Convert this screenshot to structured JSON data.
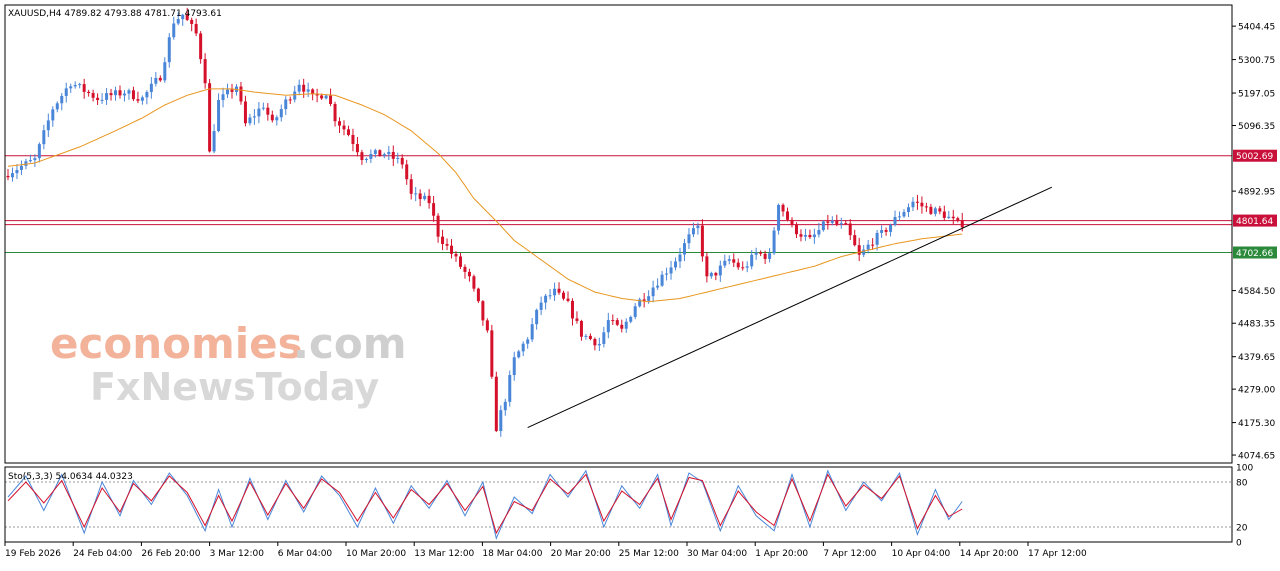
{
  "colors": {
    "bull": "#4a86d8",
    "bear": "#d4102a",
    "ma": "#e8961e",
    "stoch_main": "#4a86d8",
    "stoch_signal": "#d4102a",
    "res_line": "#c8103a",
    "sup_line": "#2a8a3a",
    "trend": "#000000",
    "frame": "#000000",
    "grid_dotted": "#999999"
  },
  "watermark": {
    "line1_part1": "economies",
    "line1_part2": ".com",
    "line2": "FxNewsToday"
  },
  "chart_data": [
    {
      "type": "candlestick",
      "symbol_info": "XAUUSD,H4  4789.82 4793.88 4781.71 4793.61",
      "y_ticks": [
        "5404.45",
        "5300.75",
        "5197.05",
        "5096.35",
        "4892.95",
        "4584.50",
        "4483.35",
        "4379.65",
        "4279.00",
        "4175.30",
        "4074.65"
      ],
      "price_labels": [
        {
          "value": "5002.69",
          "kind": "resistance"
        },
        {
          "value": "4801.64",
          "kind": "resistance"
        },
        {
          "value": "4702.66",
          "kind": "support"
        }
      ],
      "x_ticks": [
        "19 Feb 2026",
        "24 Feb 04:00",
        "26 Feb 20:00",
        "3 Mar 12:00",
        "6 Mar 04:00",
        "10 Mar 20:00",
        "13 Mar 12:00",
        "18 Mar 04:00",
        "20 Mar 20:00",
        "25 Mar 12:00",
        "30 Mar 04:00",
        "1 Apr 20:00",
        "7 Apr 12:00",
        "10 Apr 04:00",
        "14 Apr 20:00",
        "17 Apr 12:00"
      ],
      "ylim": [
        4050,
        5470
      ],
      "close_path": [
        [
          0,
          4950
        ],
        [
          6,
          4990
        ],
        [
          10,
          5150
        ],
        [
          14,
          5230
        ],
        [
          20,
          5180
        ],
        [
          26,
          5200
        ],
        [
          30,
          5180
        ],
        [
          34,
          5250
        ],
        [
          37,
          5420
        ],
        [
          39,
          5440
        ],
        [
          42,
          5380
        ],
        [
          44,
          5240
        ],
        [
          45,
          5010
        ],
        [
          47,
          5170
        ],
        [
          51,
          5220
        ],
        [
          53,
          5100
        ],
        [
          57,
          5160
        ],
        [
          59,
          5100
        ],
        [
          62,
          5170
        ],
        [
          65,
          5230
        ],
        [
          68,
          5180
        ],
        [
          71,
          5200
        ],
        [
          73,
          5120
        ],
        [
          76,
          5070
        ],
        [
          79,
          5000
        ],
        [
          84,
          5010
        ],
        [
          88,
          4980
        ],
        [
          90,
          4880
        ],
        [
          94,
          4860
        ],
        [
          96,
          4760
        ],
        [
          100,
          4680
        ],
        [
          103,
          4620
        ],
        [
          105,
          4540
        ],
        [
          107,
          4450
        ],
        [
          109,
          4160
        ],
        [
          111,
          4250
        ],
        [
          113,
          4370
        ],
        [
          116,
          4440
        ],
        [
          119,
          4550
        ],
        [
          122,
          4580
        ],
        [
          125,
          4540
        ],
        [
          128,
          4450
        ],
        [
          132,
          4420
        ],
        [
          134,
          4490
        ],
        [
          137,
          4460
        ],
        [
          140,
          4540
        ],
        [
          143,
          4580
        ],
        [
          146,
          4630
        ],
        [
          149,
          4680
        ],
        [
          152,
          4750
        ],
        [
          154,
          4780
        ],
        [
          156,
          4620
        ],
        [
          158,
          4640
        ],
        [
          161,
          4680
        ],
        [
          164,
          4650
        ],
        [
          167,
          4700
        ],
        [
          170,
          4690
        ],
        [
          172,
          4860
        ],
        [
          175,
          4780
        ],
        [
          179,
          4740
        ],
        [
          183,
          4800
        ],
        [
          187,
          4780
        ],
        [
          190,
          4690
        ],
        [
          193,
          4740
        ],
        [
          195,
          4760
        ],
        [
          199,
          4820
        ],
        [
          202,
          4860
        ],
        [
          205,
          4840
        ],
        [
          209,
          4820
        ],
        [
          212,
          4790
        ],
        [
          213,
          4793.61
        ]
      ],
      "ma_path": [
        [
          0,
          4970
        ],
        [
          6,
          4980
        ],
        [
          10,
          5000
        ],
        [
          16,
          5030
        ],
        [
          24,
          5080
        ],
        [
          30,
          5120
        ],
        [
          35,
          5160
        ],
        [
          40,
          5190
        ],
        [
          45,
          5210
        ],
        [
          50,
          5210
        ],
        [
          55,
          5200
        ],
        [
          62,
          5190
        ],
        [
          68,
          5195
        ],
        [
          73,
          5190
        ],
        [
          79,
          5160
        ],
        [
          84,
          5130
        ],
        [
          90,
          5080
        ],
        [
          96,
          5010
        ],
        [
          100,
          4950
        ],
        [
          104,
          4870
        ],
        [
          109,
          4800
        ],
        [
          113,
          4740
        ],
        [
          119,
          4680
        ],
        [
          125,
          4620
        ],
        [
          131,
          4580
        ],
        [
          137,
          4560
        ],
        [
          143,
          4550
        ],
        [
          150,
          4560
        ],
        [
          156,
          4580
        ],
        [
          162,
          4600
        ],
        [
          168,
          4620
        ],
        [
          174,
          4640
        ],
        [
          180,
          4660
        ],
        [
          186,
          4690
        ],
        [
          192,
          4710
        ],
        [
          198,
          4730
        ],
        [
          204,
          4745
        ],
        [
          210,
          4755
        ],
        [
          213,
          4760
        ]
      ],
      "trendline": [
        [
          116,
          4160
        ],
        [
          233,
          4905
        ]
      ]
    },
    {
      "type": "line",
      "indicator": "Sto(5,3,3) 54.0634 44.0323",
      "y_ticks": [
        "100",
        "80",
        "20",
        "0"
      ],
      "ylim": [
        0,
        100
      ],
      "levels": [
        80,
        20
      ],
      "main_path": [
        [
          0,
          60
        ],
        [
          4,
          88
        ],
        [
          8,
          42
        ],
        [
          12,
          90
        ],
        [
          17,
          12
        ],
        [
          21,
          80
        ],
        [
          25,
          35
        ],
        [
          28,
          82
        ],
        [
          32,
          50
        ],
        [
          36,
          92
        ],
        [
          40,
          62
        ],
        [
          44,
          15
        ],
        [
          47,
          70
        ],
        [
          50,
          20
        ],
        [
          54,
          85
        ],
        [
          58,
          30
        ],
        [
          62,
          82
        ],
        [
          66,
          40
        ],
        [
          70,
          88
        ],
        [
          74,
          62
        ],
        [
          78,
          20
        ],
        [
          82,
          72
        ],
        [
          86,
          25
        ],
        [
          90,
          75
        ],
        [
          94,
          45
        ],
        [
          98,
          82
        ],
        [
          102,
          35
        ],
        [
          106,
          80
        ],
        [
          109,
          5
        ],
        [
          113,
          60
        ],
        [
          117,
          38
        ],
        [
          121,
          90
        ],
        [
          125,
          60
        ],
        [
          129,
          95
        ],
        [
          133,
          20
        ],
        [
          137,
          75
        ],
        [
          141,
          45
        ],
        [
          145,
          90
        ],
        [
          148,
          22
        ],
        [
          152,
          92
        ],
        [
          155,
          80
        ],
        [
          159,
          15
        ],
        [
          163,
          75
        ],
        [
          167,
          35
        ],
        [
          171,
          15
        ],
        [
          175,
          90
        ],
        [
          179,
          20
        ],
        [
          183,
          95
        ],
        [
          187,
          42
        ],
        [
          191,
          80
        ],
        [
          195,
          55
        ],
        [
          199,
          92
        ],
        [
          203,
          10
        ],
        [
          207,
          70
        ],
        [
          210,
          30
        ],
        [
          213,
          54.06
        ]
      ],
      "signal_path": [
        [
          0,
          55
        ],
        [
          4,
          80
        ],
        [
          8,
          52
        ],
        [
          12,
          82
        ],
        [
          17,
          20
        ],
        [
          21,
          72
        ],
        [
          25,
          40
        ],
        [
          28,
          78
        ],
        [
          32,
          55
        ],
        [
          36,
          88
        ],
        [
          40,
          66
        ],
        [
          44,
          22
        ],
        [
          47,
          62
        ],
        [
          50,
          28
        ],
        [
          54,
          80
        ],
        [
          58,
          36
        ],
        [
          62,
          78
        ],
        [
          66,
          45
        ],
        [
          70,
          84
        ],
        [
          74,
          66
        ],
        [
          78,
          28
        ],
        [
          82,
          66
        ],
        [
          86,
          32
        ],
        [
          90,
          70
        ],
        [
          94,
          50
        ],
        [
          98,
          78
        ],
        [
          102,
          42
        ],
        [
          106,
          74
        ],
        [
          109,
          12
        ],
        [
          113,
          54
        ],
        [
          117,
          42
        ],
        [
          121,
          84
        ],
        [
          125,
          64
        ],
        [
          129,
          90
        ],
        [
          133,
          28
        ],
        [
          137,
          68
        ],
        [
          141,
          50
        ],
        [
          145,
          85
        ],
        [
          148,
          30
        ],
        [
          152,
          86
        ],
        [
          155,
          82
        ],
        [
          159,
          22
        ],
        [
          163,
          68
        ],
        [
          167,
          40
        ],
        [
          171,
          22
        ],
        [
          175,
          84
        ],
        [
          179,
          28
        ],
        [
          183,
          90
        ],
        [
          187,
          48
        ],
        [
          191,
          76
        ],
        [
          195,
          58
        ],
        [
          199,
          88
        ],
        [
          203,
          18
        ],
        [
          207,
          62
        ],
        [
          210,
          34
        ],
        [
          213,
          44.03
        ]
      ]
    }
  ]
}
